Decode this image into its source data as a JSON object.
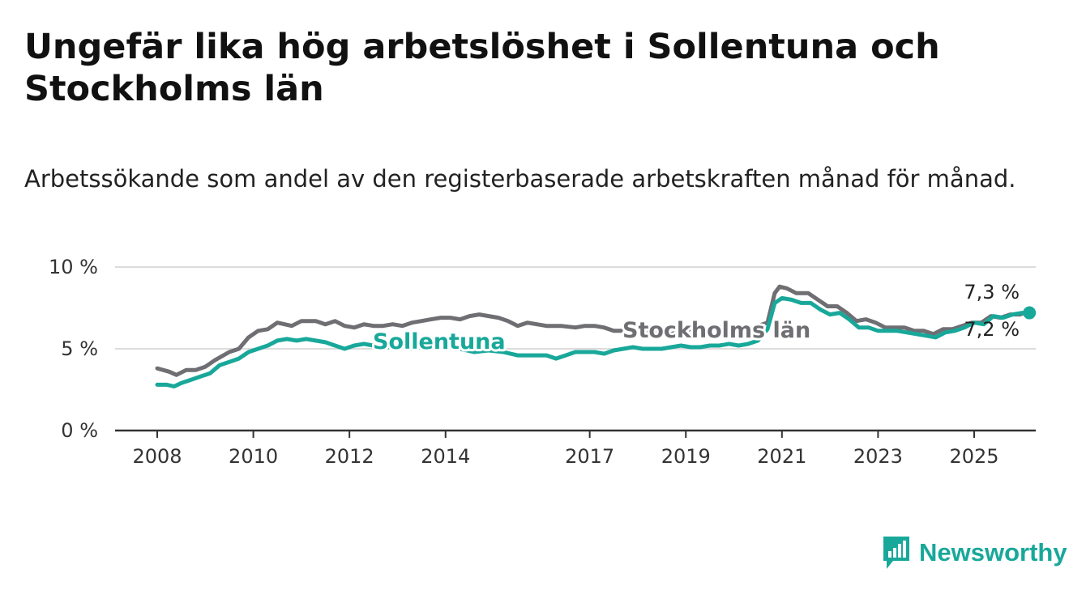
{
  "header": {
    "title": "Ungefär lika hög arbetslöshet i Sollentuna och Stockholms län",
    "subtitle": "Arbetssökande som andel av den registerbaserade arbetskraften månad för månad."
  },
  "brand": {
    "name": "Newsworthy",
    "icon": "bar-chart-speech-bubble-icon",
    "color": "#18a89a"
  },
  "chart_data": {
    "type": "line",
    "ylim": [
      0,
      10
    ],
    "xlim": [
      2008,
      2026.25
    ],
    "y_ticks": [
      {
        "value": 0,
        "label": "0 %"
      },
      {
        "value": 5,
        "label": "5 %"
      },
      {
        "value": 10,
        "label": "10 %"
      }
    ],
    "x_ticks": [
      {
        "value": 2008,
        "label": "2008"
      },
      {
        "value": 2010,
        "label": "2010"
      },
      {
        "value": 2012,
        "label": "2012"
      },
      {
        "value": 2014,
        "label": "2014"
      },
      {
        "value": 2017,
        "label": "2017"
      },
      {
        "value": 2019,
        "label": "2019"
      },
      {
        "value": 2021,
        "label": "2021"
      },
      {
        "value": 2023,
        "label": "2023"
      },
      {
        "value": 2025,
        "label": "2025"
      }
    ],
    "grid": true,
    "series": [
      {
        "name": "Stockholms län",
        "color": "#6e6e73",
        "end_label": "7,3 %",
        "points": [
          [
            2008.0,
            3.8
          ],
          [
            2008.25,
            3.6
          ],
          [
            2008.4,
            3.4
          ],
          [
            2008.6,
            3.7
          ],
          [
            2008.8,
            3.7
          ],
          [
            2009.0,
            3.9
          ],
          [
            2009.2,
            4.3
          ],
          [
            2009.5,
            4.8
          ],
          [
            2009.7,
            5.0
          ],
          [
            2009.9,
            5.7
          ],
          [
            2010.1,
            6.1
          ],
          [
            2010.3,
            6.2
          ],
          [
            2010.5,
            6.6
          ],
          [
            2010.8,
            6.4
          ],
          [
            2011.0,
            6.7
          ],
          [
            2011.3,
            6.7
          ],
          [
            2011.5,
            6.5
          ],
          [
            2011.7,
            6.7
          ],
          [
            2011.9,
            6.4
          ],
          [
            2012.1,
            6.3
          ],
          [
            2012.3,
            6.5
          ],
          [
            2012.5,
            6.4
          ],
          [
            2012.7,
            6.4
          ],
          [
            2012.9,
            6.5
          ],
          [
            2013.1,
            6.4
          ],
          [
            2013.3,
            6.6
          ],
          [
            2013.5,
            6.7
          ],
          [
            2013.7,
            6.8
          ],
          [
            2013.9,
            6.9
          ],
          [
            2014.1,
            6.9
          ],
          [
            2014.3,
            6.8
          ],
          [
            2014.5,
            7.0
          ],
          [
            2014.7,
            7.1
          ],
          [
            2014.9,
            7.0
          ],
          [
            2015.1,
            6.9
          ],
          [
            2015.3,
            6.7
          ],
          [
            2015.5,
            6.4
          ],
          [
            2015.7,
            6.6
          ],
          [
            2015.9,
            6.5
          ],
          [
            2016.1,
            6.4
          ],
          [
            2016.4,
            6.4
          ],
          [
            2016.7,
            6.3
          ],
          [
            2016.9,
            6.4
          ],
          [
            2017.1,
            6.4
          ],
          [
            2017.3,
            6.3
          ],
          [
            2017.5,
            6.1
          ],
          [
            2017.7,
            6.1
          ],
          [
            2017.9,
            6.1
          ],
          [
            2018.1,
            6.0
          ],
          [
            2018.3,
            6.1
          ],
          [
            2018.5,
            6.0
          ],
          [
            2018.7,
            5.9
          ],
          [
            2018.9,
            6.1
          ],
          [
            2019.1,
            6.2
          ],
          [
            2019.4,
            6.1
          ],
          [
            2019.7,
            6.3
          ],
          [
            2020.0,
            6.4
          ],
          [
            2020.3,
            6.2
          ],
          [
            2020.5,
            6.4
          ],
          [
            2020.7,
            6.6
          ],
          [
            2020.85,
            8.4
          ],
          [
            2020.95,
            8.8
          ],
          [
            2021.1,
            8.7
          ],
          [
            2021.3,
            8.4
          ],
          [
            2021.55,
            8.4
          ],
          [
            2021.75,
            8.0
          ],
          [
            2021.95,
            7.6
          ],
          [
            2022.15,
            7.6
          ],
          [
            2022.35,
            7.2
          ],
          [
            2022.55,
            6.7
          ],
          [
            2022.75,
            6.8
          ],
          [
            2022.95,
            6.6
          ],
          [
            2023.15,
            6.3
          ],
          [
            2023.35,
            6.3
          ],
          [
            2023.55,
            6.3
          ],
          [
            2023.75,
            6.1
          ],
          [
            2023.95,
            6.1
          ],
          [
            2024.15,
            5.9
          ],
          [
            2024.35,
            6.2
          ],
          [
            2024.55,
            6.2
          ],
          [
            2024.75,
            6.4
          ],
          [
            2024.95,
            6.6
          ],
          [
            2025.15,
            6.6
          ],
          [
            2025.35,
            7.0
          ],
          [
            2025.55,
            6.9
          ],
          [
            2025.75,
            7.1
          ],
          [
            2025.95,
            7.1
          ],
          [
            2026.15,
            7.3
          ]
        ]
      },
      {
        "name": "Sollentuna",
        "color": "#18a89a",
        "end_label": "7,2 %",
        "points": [
          [
            2008.0,
            2.8
          ],
          [
            2008.2,
            2.8
          ],
          [
            2008.35,
            2.7
          ],
          [
            2008.5,
            2.9
          ],
          [
            2008.7,
            3.1
          ],
          [
            2008.9,
            3.3
          ],
          [
            2009.1,
            3.5
          ],
          [
            2009.3,
            4.0
          ],
          [
            2009.5,
            4.2
          ],
          [
            2009.7,
            4.4
          ],
          [
            2009.9,
            4.8
          ],
          [
            2010.1,
            5.0
          ],
          [
            2010.3,
            5.2
          ],
          [
            2010.5,
            5.5
          ],
          [
            2010.7,
            5.6
          ],
          [
            2010.9,
            5.5
          ],
          [
            2011.1,
            5.6
          ],
          [
            2011.3,
            5.5
          ],
          [
            2011.5,
            5.4
          ],
          [
            2011.7,
            5.2
          ],
          [
            2011.9,
            5.0
          ],
          [
            2012.1,
            5.2
          ],
          [
            2012.3,
            5.3
          ],
          [
            2012.5,
            5.2
          ],
          [
            2012.7,
            5.1
          ],
          [
            2012.9,
            5.1
          ],
          [
            2013.1,
            5.1
          ],
          [
            2013.3,
            5.0
          ],
          [
            2013.5,
            5.1
          ],
          [
            2013.7,
            5.3
          ],
          [
            2014.0,
            5.3
          ],
          [
            2014.3,
            5.0
          ],
          [
            2014.6,
            4.8
          ],
          [
            2014.9,
            4.9
          ],
          [
            2015.2,
            4.8
          ],
          [
            2015.5,
            4.6
          ],
          [
            2015.8,
            4.6
          ],
          [
            2016.1,
            4.6
          ],
          [
            2016.3,
            4.4
          ],
          [
            2016.5,
            4.6
          ],
          [
            2016.7,
            4.8
          ],
          [
            2016.9,
            4.8
          ],
          [
            2017.1,
            4.8
          ],
          [
            2017.3,
            4.7
          ],
          [
            2017.5,
            4.9
          ],
          [
            2017.7,
            5.0
          ],
          [
            2017.9,
            5.1
          ],
          [
            2018.1,
            5.0
          ],
          [
            2018.3,
            5.0
          ],
          [
            2018.5,
            5.0
          ],
          [
            2018.7,
            5.1
          ],
          [
            2018.9,
            5.2
          ],
          [
            2019.1,
            5.1
          ],
          [
            2019.3,
            5.1
          ],
          [
            2019.5,
            5.2
          ],
          [
            2019.7,
            5.2
          ],
          [
            2019.9,
            5.3
          ],
          [
            2020.1,
            5.2
          ],
          [
            2020.3,
            5.3
          ],
          [
            2020.5,
            5.5
          ],
          [
            2020.7,
            6.2
          ],
          [
            2020.85,
            7.8
          ],
          [
            2021.0,
            8.1
          ],
          [
            2021.2,
            8.0
          ],
          [
            2021.4,
            7.8
          ],
          [
            2021.6,
            7.8
          ],
          [
            2021.8,
            7.4
          ],
          [
            2022.0,
            7.1
          ],
          [
            2022.2,
            7.2
          ],
          [
            2022.4,
            6.8
          ],
          [
            2022.6,
            6.3
          ],
          [
            2022.8,
            6.3
          ],
          [
            2023.0,
            6.1
          ],
          [
            2023.2,
            6.1
          ],
          [
            2023.4,
            6.1
          ],
          [
            2023.6,
            6.0
          ],
          [
            2023.8,
            5.9
          ],
          [
            2024.0,
            5.8
          ],
          [
            2024.2,
            5.7
          ],
          [
            2024.4,
            6.0
          ],
          [
            2024.6,
            6.1
          ],
          [
            2024.8,
            6.3
          ],
          [
            2025.0,
            6.6
          ],
          [
            2025.2,
            6.5
          ],
          [
            2025.4,
            7.0
          ],
          [
            2025.6,
            6.9
          ],
          [
            2025.8,
            7.1
          ],
          [
            2026.0,
            7.2
          ],
          [
            2026.15,
            7.2
          ]
        ]
      }
    ]
  }
}
